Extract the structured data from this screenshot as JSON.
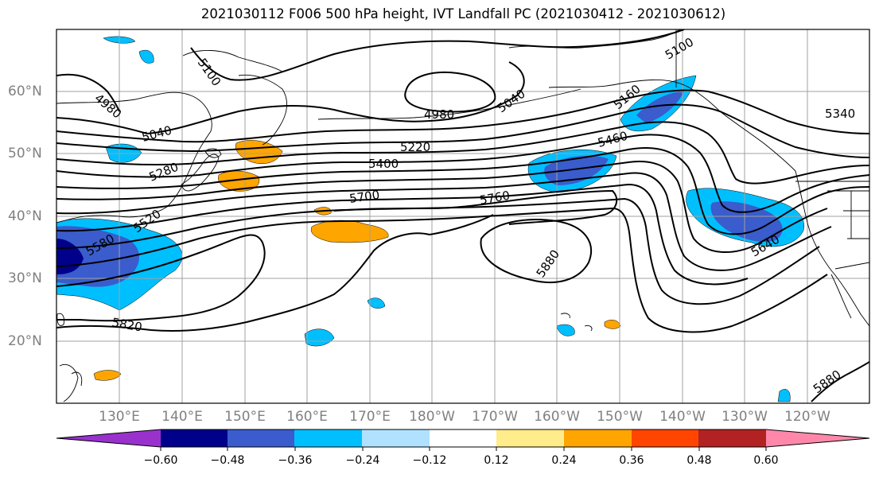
{
  "title": "2021030112 F006 500 hPa height, IVT Landfall PC (2021030412 - 2021030612)",
  "lat_labels": [
    "60°N",
    "50°N",
    "40°N",
    "30°N",
    "20°N"
  ],
  "lon_labels": [
    "130°E",
    "140°E",
    "150°E",
    "160°E",
    "170°E",
    "180°W",
    "170°W",
    "160°W",
    "150°W",
    "140°W",
    "130°W",
    "120°W"
  ],
  "contour_labels": [
    "4980",
    "5100",
    "5040",
    "5160",
    "4980",
    "5040",
    "5220",
    "5400",
    "5280",
    "5460",
    "5340",
    "5700",
    "5760",
    "5520",
    "5580",
    "5880",
    "5640",
    "5820",
    "5880",
    "5100"
  ],
  "colorbar": {
    "colors": [
      "#9932cc",
      "#00008b",
      "#3a5ccc",
      "#00bfff",
      "#b0e2ff",
      "#ffffff",
      "#ffec8b",
      "#ffa500",
      "#ff4500",
      "#b22222",
      "#ff88aa"
    ],
    "tick_labels": [
      "−0.60",
      "−0.48",
      "−0.36",
      "−0.24",
      "−0.12",
      "0.12",
      "0.24",
      "0.36",
      "0.48",
      "0.60"
    ]
  }
}
